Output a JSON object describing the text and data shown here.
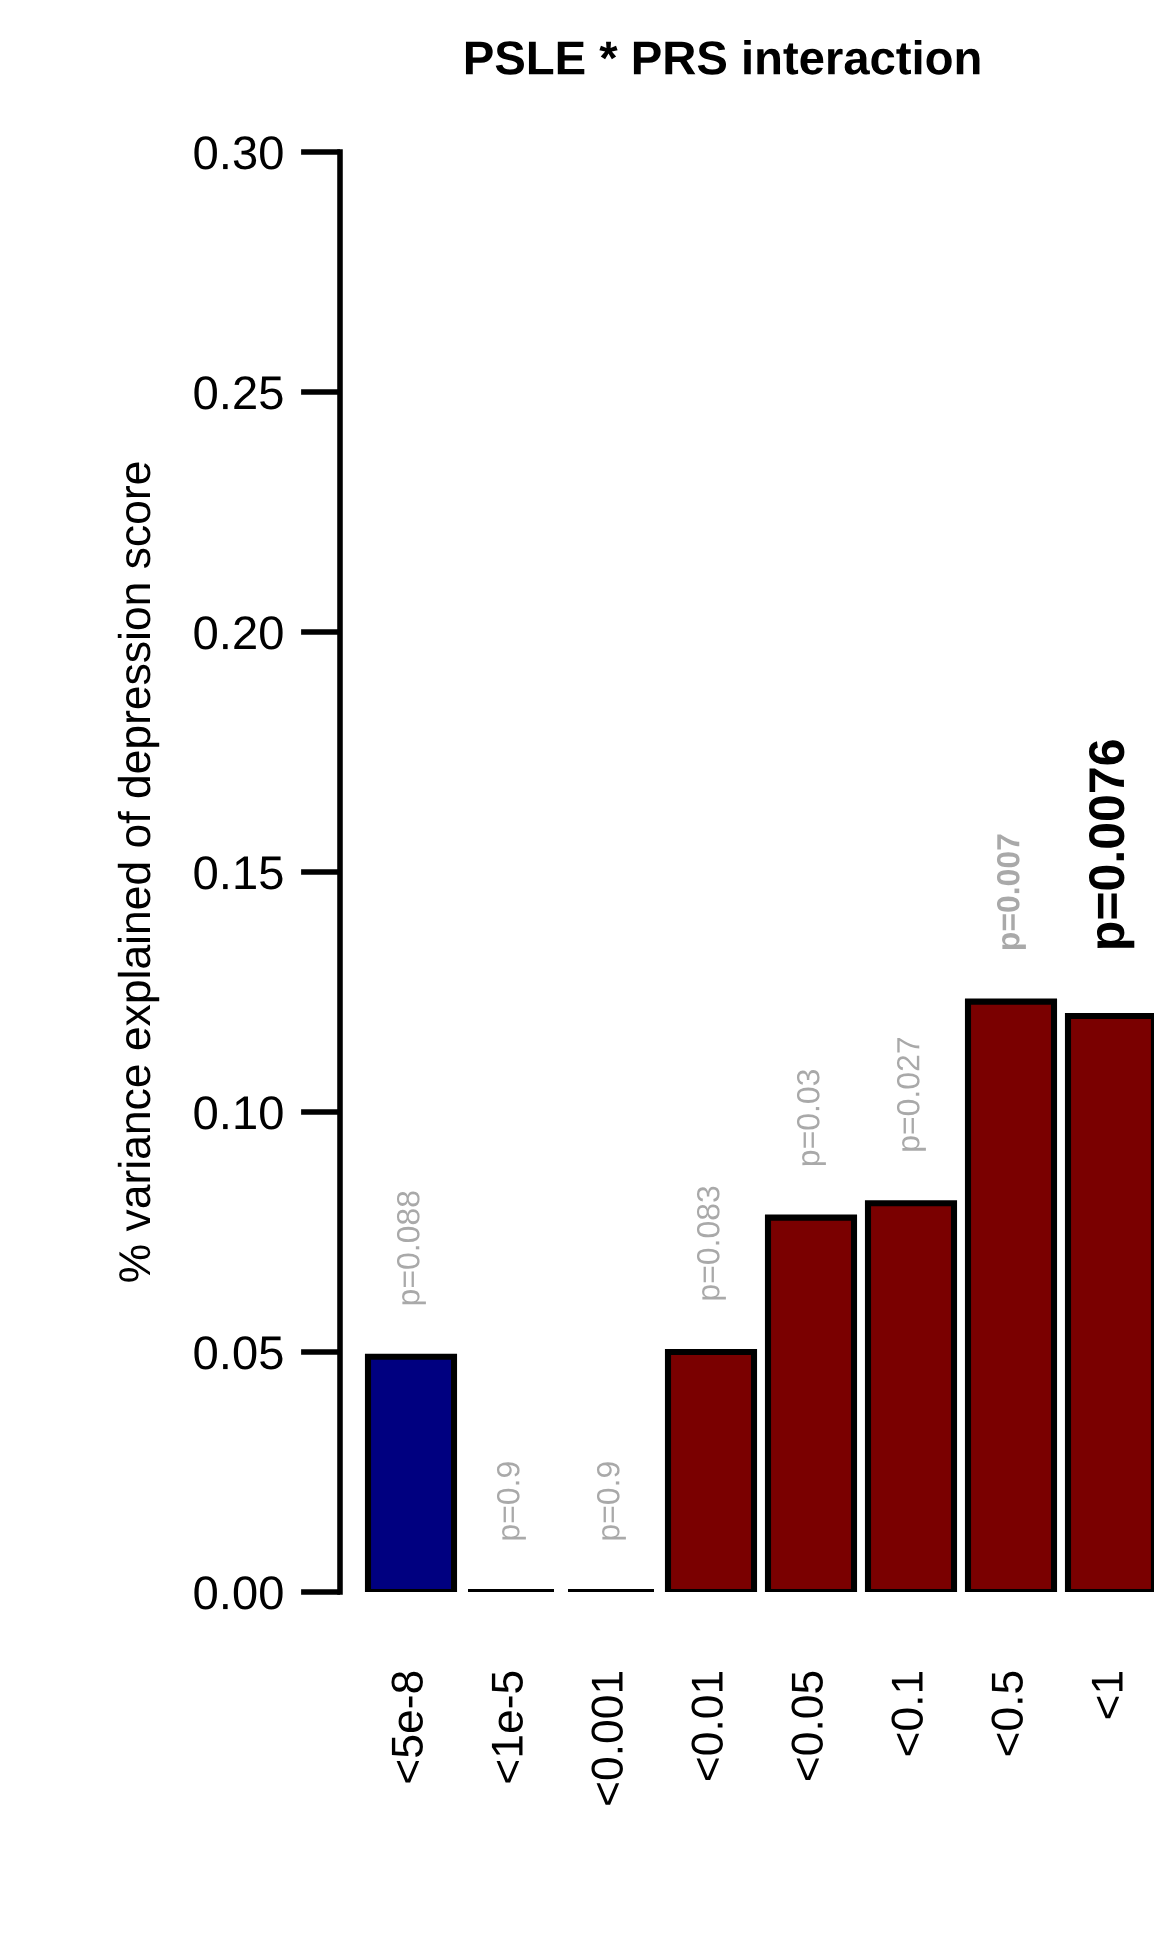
{
  "chart_data": {
    "type": "bar",
    "title": "PSLE * PRS interaction",
    "ylabel": "% variance explained of depression score",
    "categories": [
      "<5e-8",
      "<1e-5",
      "<0.001",
      "<0.01",
      "<0.05",
      "<0.1",
      "<0.5",
      "<1"
    ],
    "values": [
      0.049,
      0,
      0,
      0.05,
      0.078,
      0.081,
      0.123,
      0.12
    ],
    "colors": [
      "#000080",
      "#000000",
      "#000000",
      "#7a0000",
      "#7a0000",
      "#7a0000",
      "#7a0000",
      "#7a0000"
    ],
    "annotations": [
      {
        "text": "p=0.088",
        "x": "<5e-8",
        "y": 0.049
      },
      {
        "text": "p=0.9",
        "x": "<1e-5",
        "y": 0
      },
      {
        "text": "p=0.9",
        "x": "<0.001",
        "y": 0
      },
      {
        "text": "p=0.083",
        "x": "<0.01",
        "y": 0.05
      },
      {
        "text": "p=0.03",
        "x": "<0.05",
        "y": 0.078
      },
      {
        "text": "p=0.027",
        "x": "<0.1",
        "y": 0.081
      },
      {
        "text": "p=0.007",
        "x": "<0.5",
        "y": 0.123
      },
      {
        "text": "p=0.0076",
        "x": "<1",
        "y": 0.12
      }
    ],
    "ylim": [
      0,
      0.3
    ],
    "yticks": [
      {
        "value": 0,
        "label": "0.00"
      },
      {
        "value": 0.05,
        "label": "0.05"
      },
      {
        "value": 0.1,
        "label": "0.10"
      },
      {
        "value": 0.15,
        "label": "0.15"
      },
      {
        "value": 0.2,
        "label": "0.20"
      },
      {
        "value": 0.25,
        "label": "0.25"
      },
      {
        "value": 0.3,
        "label": "0.30"
      }
    ],
    "grid": false
  }
}
